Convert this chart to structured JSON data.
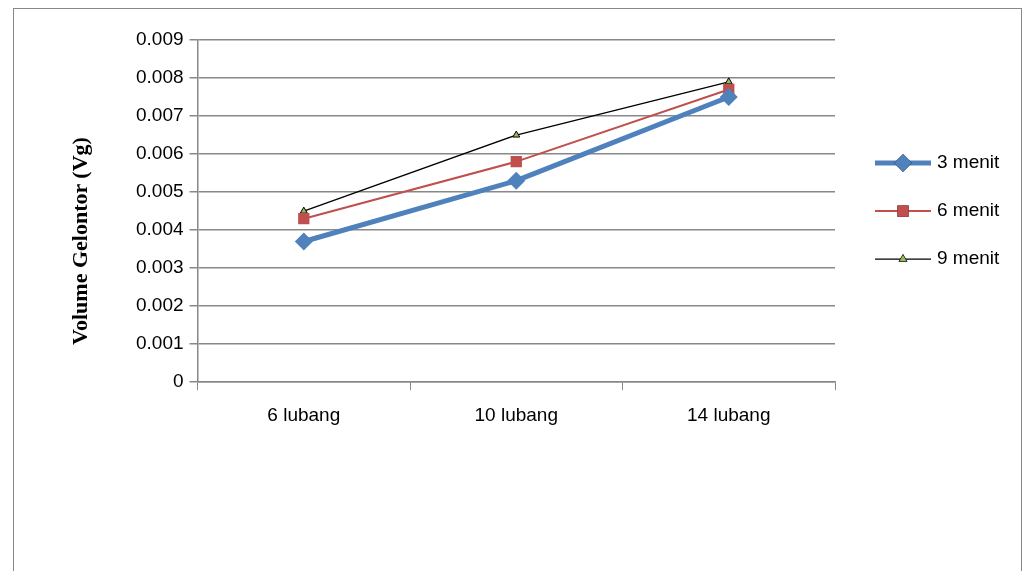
{
  "chart_data": {
    "type": "line",
    "ylabel": "Volume Gelontor (Vg)",
    "categories": [
      "6 lubang",
      "10 lubang",
      "14 lubang"
    ],
    "series": [
      {
        "name": "3 menit",
        "color": "#4f81bd",
        "marker": "diamond",
        "values": [
          0.0037,
          0.0053,
          0.0075
        ]
      },
      {
        "name": "6 menit",
        "color": "#c0504d",
        "marker": "square",
        "values": [
          0.0043,
          0.0058,
          0.0077
        ]
      },
      {
        "name": "9 menit",
        "color": "#000000",
        "marker": "triangle",
        "values": [
          0.0045,
          0.0065,
          0.0079
        ]
      }
    ],
    "ylim": [
      0,
      0.009
    ],
    "yticks": [
      0,
      0.001,
      0.002,
      0.003,
      0.004,
      0.005,
      0.006,
      0.007,
      0.008,
      0.009
    ],
    "grid": "y",
    "legend": "right",
    "line_style": "solid"
  }
}
